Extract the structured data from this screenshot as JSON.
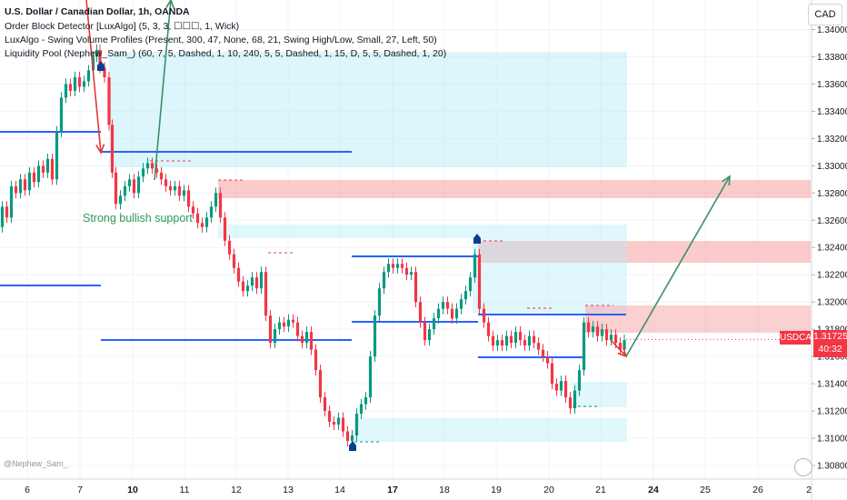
{
  "header": {
    "title": "U.S. Dollar / Canadian Dollar, 1h, OANDA",
    "indicators": [
      "Order Block Detector [LuxAlgo] (5, 3, 3, ☐☐☐, 1, Wick)",
      "LuxAlgo - Swing Volume Profiles (Present, 300, 47, None, 68, 21, Swing High/Low, Small, 27, Left, 50)",
      "Liquidity Pool (Nephew_Sam_) (60, 7, 5, Dashed, 1, 10, 240, 5, 5, Dashed, 1, 15, D, 5, 5, Dashed, 1, 20)"
    ],
    "currency_button": "CAD"
  },
  "watermark": "@Nephew_Sam_",
  "annotation": "Strong bullish support",
  "price_badge": {
    "symbol": "USDCAD",
    "price": "1.31725",
    "countdown": "40:32"
  },
  "colors": {
    "up": "#089981",
    "down": "#f23645",
    "level": "#2962ff",
    "zone_blue": "#b2ebf7",
    "zone_red": "#f7a1a1",
    "arrow": "#3a8f6b",
    "arrow_red": "#e53935"
  },
  "chart_data": {
    "type": "candlestick",
    "title": "U.S. Dollar / Canadian Dollar, 1h, OANDA",
    "y_axis": {
      "ticks": [
        "1.34000",
        "1.33800",
        "1.33600",
        "1.33400",
        "1.33200",
        "1.33000",
        "1.32800",
        "1.32600",
        "1.32400",
        "1.32200",
        "1.32000",
        "1.31800",
        "1.31600",
        "1.31400",
        "1.31200",
        "1.31000",
        "1.30800"
      ],
      "range": [
        1.307,
        1.3415
      ]
    },
    "x_axis": {
      "ticks": [
        "6",
        "7",
        "10",
        "11",
        "12",
        "13",
        "14",
        "17",
        "18",
        "19",
        "20",
        "21",
        "24",
        "25",
        "26",
        "2"
      ],
      "bold_ticks": [
        "10",
        "17",
        "24"
      ]
    },
    "price_path": [
      [
        0,
        1.3255
      ],
      [
        5,
        1.327
      ],
      [
        10,
        1.3262
      ],
      [
        15,
        1.3285
      ],
      [
        20,
        1.328
      ],
      [
        25,
        1.329
      ],
      [
        30,
        1.3282
      ],
      [
        35,
        1.3295
      ],
      [
        40,
        1.3288
      ],
      [
        45,
        1.33
      ],
      [
        50,
        1.3295
      ],
      [
        55,
        1.3305
      ],
      [
        60,
        1.329
      ],
      [
        65,
        1.3325
      ],
      [
        70,
        1.335
      ],
      [
        75,
        1.336
      ],
      [
        80,
        1.3355
      ],
      [
        85,
        1.3365
      ],
      [
        90,
        1.3358
      ],
      [
        95,
        1.3362
      ],
      [
        100,
        1.337
      ],
      [
        105,
        1.338
      ],
      [
        108,
        1.3385
      ],
      [
        112,
        1.3372
      ],
      [
        118,
        1.3365
      ],
      [
        122,
        1.333
      ],
      [
        125,
        1.3295
      ],
      [
        130,
        1.3272
      ],
      [
        135,
        1.3278
      ],
      [
        140,
        1.3285
      ],
      [
        145,
        1.329
      ],
      [
        150,
        1.328
      ],
      [
        155,
        1.3292
      ],
      [
        160,
        1.3298
      ],
      [
        165,
        1.3302
      ],
      [
        170,
        1.3298
      ],
      [
        175,
        1.3295
      ],
      [
        180,
        1.329
      ],
      [
        185,
        1.3285
      ],
      [
        190,
        1.3282
      ],
      [
        195,
        1.3285
      ],
      [
        200,
        1.3278
      ],
      [
        205,
        1.3282
      ],
      [
        210,
        1.327
      ],
      [
        215,
        1.3265
      ],
      [
        220,
        1.3258
      ],
      [
        225,
        1.3255
      ],
      [
        230,
        1.3262
      ],
      [
        235,
        1.327
      ],
      [
        240,
        1.328
      ],
      [
        245,
        1.3262
      ],
      [
        250,
        1.3245
      ],
      [
        255,
        1.3235
      ],
      [
        260,
        1.3225
      ],
      [
        265,
        1.3215
      ],
      [
        270,
        1.3208
      ],
      [
        275,
        1.3212
      ],
      [
        280,
        1.3218
      ],
      [
        285,
        1.321
      ],
      [
        290,
        1.3222
      ],
      [
        295,
        1.319
      ],
      [
        300,
        1.317
      ],
      [
        305,
        1.318
      ],
      [
        310,
        1.3185
      ],
      [
        315,
        1.3182
      ],
      [
        320,
        1.3187
      ],
      [
        325,
        1.3185
      ],
      [
        330,
        1.3175
      ],
      [
        335,
        1.317
      ],
      [
        340,
        1.3178
      ],
      [
        345,
        1.3165
      ],
      [
        350,
        1.315
      ],
      [
        355,
        1.313
      ],
      [
        360,
        1.312
      ],
      [
        365,
        1.3112
      ],
      [
        370,
        1.311
      ],
      [
        375,
        1.3115
      ],
      [
        380,
        1.3105
      ],
      [
        385,
        1.3098
      ],
      [
        390,
        1.3102
      ],
      [
        395,
        1.3118
      ],
      [
        400,
        1.3125
      ],
      [
        405,
        1.313
      ],
      [
        410,
        1.316
      ],
      [
        415,
        1.319
      ],
      [
        420,
        1.321
      ],
      [
        425,
        1.3222
      ],
      [
        430,
        1.3228
      ],
      [
        435,
        1.3225
      ],
      [
        440,
        1.3228
      ],
      [
        445,
        1.3225
      ],
      [
        450,
        1.322
      ],
      [
        455,
        1.3222
      ],
      [
        460,
        1.32
      ],
      [
        465,
        1.3185
      ],
      [
        470,
        1.3172
      ],
      [
        475,
        1.318
      ],
      [
        480,
        1.3188
      ],
      [
        485,
        1.3195
      ],
      [
        490,
        1.32
      ],
      [
        495,
        1.3195
      ],
      [
        500,
        1.3188
      ],
      [
        505,
        1.3195
      ],
      [
        510,
        1.3202
      ],
      [
        515,
        1.3208
      ],
      [
        520,
        1.3218
      ],
      [
        525,
        1.3235
      ],
      [
        530,
        1.3195
      ],
      [
        535,
        1.3185
      ],
      [
        540,
        1.3175
      ],
      [
        545,
        1.3168
      ],
      [
        550,
        1.3172
      ],
      [
        555,
        1.3168
      ],
      [
        560,
        1.3175
      ],
      [
        565,
        1.317
      ],
      [
        570,
        1.3178
      ],
      [
        575,
        1.3172
      ],
      [
        580,
        1.3168
      ],
      [
        585,
        1.3175
      ],
      [
        590,
        1.317
      ],
      [
        595,
        1.3165
      ],
      [
        600,
        1.316
      ],
      [
        605,
        1.3155
      ],
      [
        610,
        1.314
      ],
      [
        615,
        1.3135
      ],
      [
        620,
        1.3142
      ],
      [
        625,
        1.313
      ],
      [
        630,
        1.3122
      ],
      [
        635,
        1.3135
      ],
      [
        640,
        1.315
      ],
      [
        645,
        1.3185
      ],
      [
        650,
        1.3178
      ],
      [
        655,
        1.3182
      ],
      [
        660,
        1.3175
      ],
      [
        665,
        1.318
      ],
      [
        670,
        1.3172
      ],
      [
        675,
        1.3176
      ],
      [
        680,
        1.317
      ],
      [
        685,
        1.3165
      ],
      [
        689,
        1.3172
      ]
    ]
  }
}
